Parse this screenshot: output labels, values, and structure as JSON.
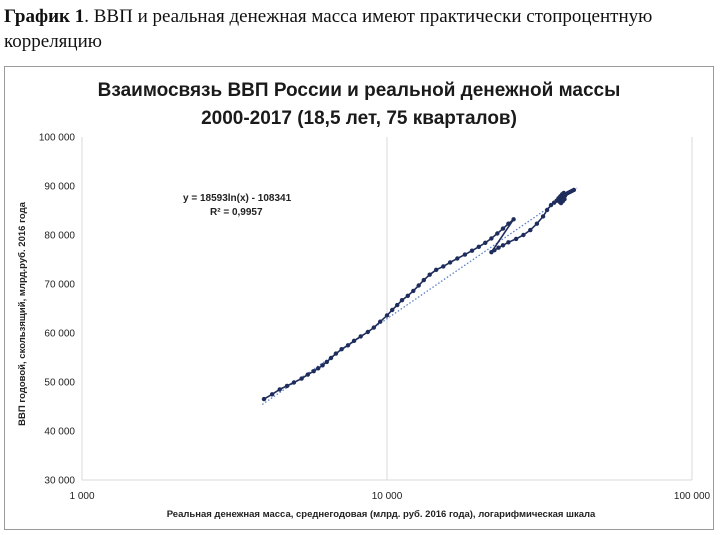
{
  "caption": {
    "label": "График 1",
    "text": ". ВВП и реальная денежная масса имеют практически стопроцентную корреляцию"
  },
  "chart_data": {
    "type": "scatter",
    "title_lines": [
      "Взаимосвязь ВВП России и реальной денежной массы",
      "2000-2017 (18,5 лет, 75 кварталов)"
    ],
    "xlabel": "Реальная денежная масса, среднегодовая (млрд. руб. 2016 года), логарифмическая шкала",
    "ylabel": "ВВП годовой, скользящий, млрд.руб. 2016 года",
    "x_scale": "log",
    "xlim": [
      1000,
      100000
    ],
    "ylim": [
      30000,
      100000
    ],
    "x_ticks": [
      1000,
      10000,
      100000
    ],
    "x_tick_labels": [
      "1 000",
      "10 000",
      "100 000"
    ],
    "y_ticks": [
      30000,
      40000,
      50000,
      60000,
      70000,
      80000,
      90000,
      100000
    ],
    "y_tick_labels": [
      "30 000",
      "40 000",
      "50 000",
      "60 000",
      "70 000",
      "80 000",
      "90 000",
      "100 000"
    ],
    "grid": "vertical at major x ticks",
    "legend": "none",
    "annotation": {
      "equation": "y = 18593ln(x) - 108341",
      "r2": "R² = 0,9957"
    },
    "trendline": {
      "type": "log",
      "a": 18593,
      "b": -108341,
      "x_range": [
        3900,
        42000
      ]
    },
    "series": [
      {
        "color": "#1f2d5c",
        "x": [
          3950,
          4200,
          4450,
          4700,
          4950,
          5250,
          5500,
          5750,
          5950,
          6150,
          6350,
          6550,
          6800,
          7100,
          7450,
          7800,
          8200,
          8650,
          9050,
          9500,
          10000,
          10400,
          10800,
          11200,
          11700,
          12200,
          12700,
          13200,
          13800,
          14500,
          15300,
          16100,
          17000,
          18000,
          19000,
          20000,
          21000,
          22000,
          23000,
          24000,
          25000,
          26000,
          22000,
          22500,
          23200,
          24000,
          25000,
          26500,
          28000,
          29500,
          31000,
          32500,
          33500,
          34500,
          35300,
          36000,
          36700,
          37400,
          38000,
          38600,
          39200,
          39800,
          40400,
          41000,
          36500,
          37000,
          37500,
          38000,
          36800,
          37300,
          37800,
          38300,
          37200,
          37700,
          38200
        ],
        "y": [
          46500,
          47500,
          48500,
          49200,
          49900,
          50700,
          51500,
          52200,
          52800,
          53400,
          54100,
          54900,
          55800,
          56700,
          57500,
          58400,
          59300,
          60200,
          61100,
          62300,
          63600,
          64700,
          65700,
          66700,
          67600,
          68600,
          69700,
          70800,
          71900,
          72900,
          73600,
          74400,
          75200,
          76000,
          76800,
          77600,
          78400,
          79300,
          80300,
          81300,
          82300,
          83200,
          76500,
          76900,
          77400,
          77900,
          78500,
          79200,
          80000,
          81000,
          82300,
          83800,
          85100,
          86100,
          86600,
          87000,
          87400,
          87700,
          88000,
          88300,
          88600,
          88800,
          89000,
          89200,
          87500,
          87900,
          88300,
          88600,
          86800,
          87200,
          87600,
          88000,
          86500,
          86900,
          87300
        ]
      }
    ]
  }
}
